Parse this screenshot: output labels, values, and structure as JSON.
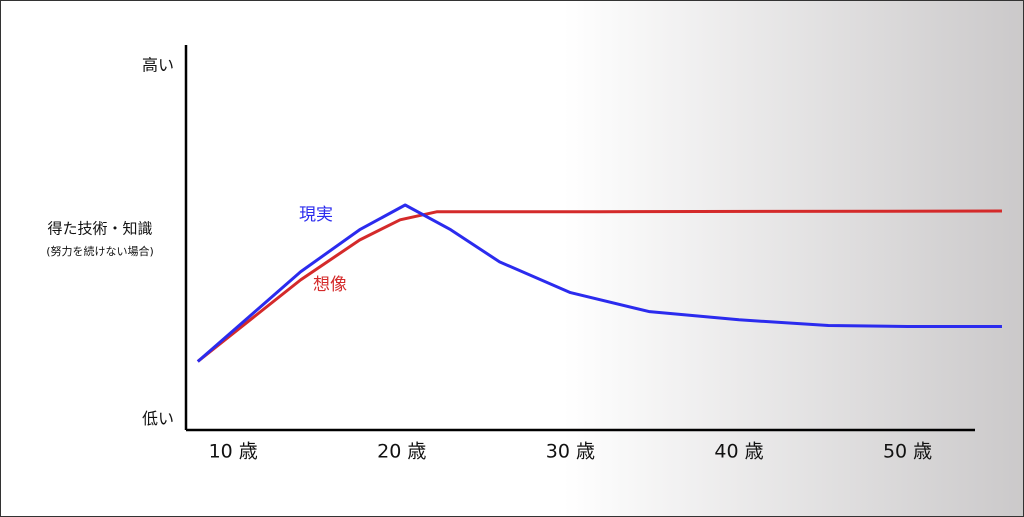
{
  "chart_data": {
    "type": "line",
    "y_label": "得た技術・知識",
    "y_sublabel": "(努力を続けない場合)",
    "xlim": [
      7.2,
      54
    ],
    "ylim": [
      -3,
      106
    ],
    "xticks": [
      {
        "value": 10,
        "label": "10 歳"
      },
      {
        "value": 20,
        "label": "20 歳"
      },
      {
        "value": 30,
        "label": "30 歳"
      },
      {
        "value": 40,
        "label": "40 歳"
      },
      {
        "value": 50,
        "label": "50 歳"
      }
    ],
    "yticks": [
      {
        "value": 100,
        "label": "高い"
      },
      {
        "value": 0,
        "label": "低い"
      }
    ],
    "series": [
      {
        "name": "現実",
        "color": "#2b2bee",
        "x": [
          7.9,
          14,
          17.5,
          20.2,
          22.9,
          25.8,
          30,
          34.7,
          40,
          45.3,
          50,
          55.6
        ],
        "values": [
          16.4,
          41.8,
          53.7,
          60.7,
          53.7,
          44.6,
          35.9,
          30.5,
          28.2,
          26.6,
          26.3,
          26.3
        ]
      },
      {
        "name": "想像",
        "color": "#d42a2a",
        "x": [
          7.9,
          14,
          17.5,
          19.9,
          22.1,
          31.7,
          55.6
        ],
        "values": [
          16.4,
          39.5,
          50.8,
          56.5,
          58.8,
          58.8,
          59.0
        ]
      }
    ]
  }
}
